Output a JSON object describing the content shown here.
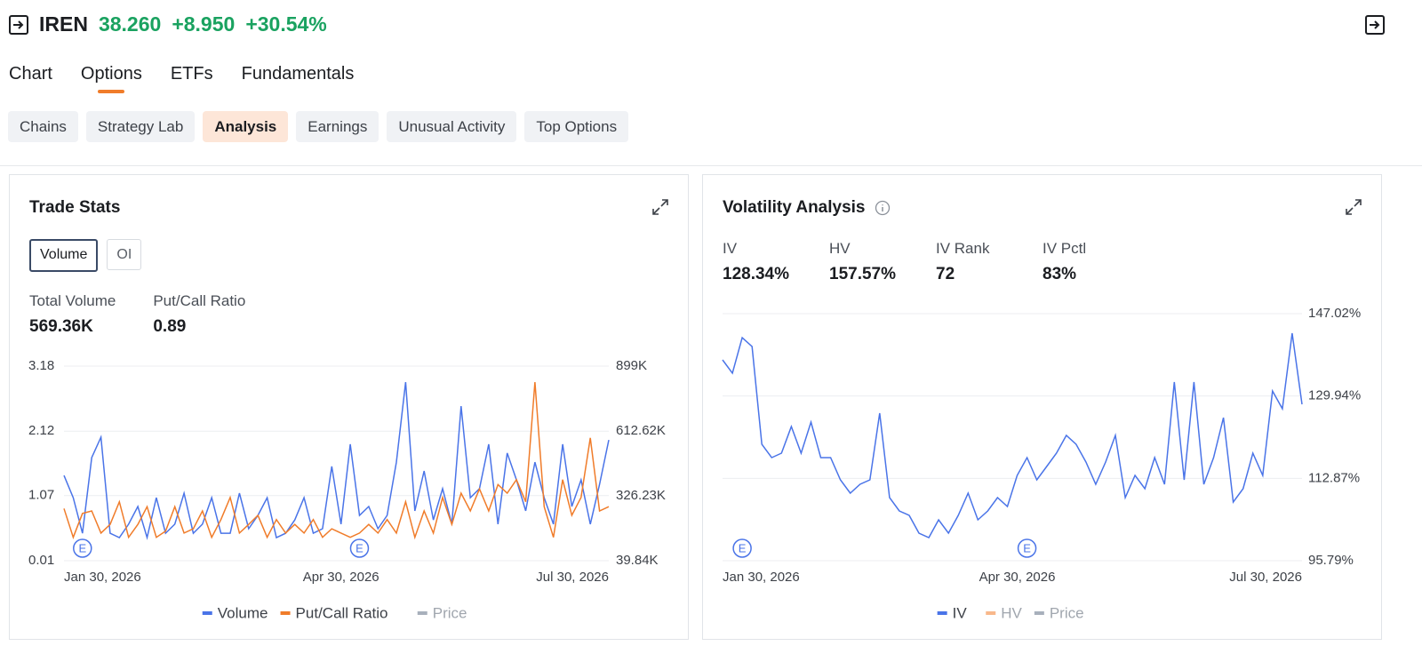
{
  "header": {
    "ticker": "IREN",
    "price": "38.260",
    "change": "+8.950",
    "change_pct": "+30.54%"
  },
  "tabs": [
    "Chart",
    "Options",
    "ETFs",
    "Fundamentals"
  ],
  "active_tab": "Options",
  "subtabs": [
    "Chains",
    "Strategy Lab",
    "Analysis",
    "Earnings",
    "Unusual Activity",
    "Top Options"
  ],
  "active_subtab": "Analysis",
  "trade_stats": {
    "title": "Trade Stats",
    "toggles": [
      "Volume",
      "OI"
    ],
    "active_toggle": "Volume",
    "stats": [
      {
        "label": "Total Volume",
        "value": "569.36K"
      },
      {
        "label": "Put/Call Ratio",
        "value": "0.89"
      }
    ],
    "chart_data": {
      "type": "line",
      "categories": [
        "Jan 30, 2026",
        null,
        null,
        null,
        null,
        null,
        null,
        null,
        null,
        null,
        null,
        null,
        null,
        null,
        null,
        null,
        null,
        null,
        null,
        null,
        null,
        null,
        null,
        null,
        null,
        null,
        null,
        null,
        null,
        null,
        "Apr 30, 2026",
        null,
        null,
        null,
        null,
        null,
        null,
        null,
        null,
        null,
        null,
        null,
        null,
        null,
        null,
        null,
        null,
        null,
        null,
        null,
        null,
        null,
        null,
        null,
        null,
        null,
        null,
        null,
        null,
        "Jul 30, 2026"
      ],
      "ylim": [
        0.01,
        3.18
      ],
      "yticks": [
        0.01,
        1.07,
        2.12,
        3.18
      ],
      "y2lim": [
        39840,
        899000
      ],
      "y2ticks": [
        {
          "value": 39840,
          "label": "39.84K"
        },
        {
          "value": 326230,
          "label": "326.23K"
        },
        {
          "value": 612620,
          "label": "612.62K"
        },
        {
          "value": 899000,
          "label": "899K"
        }
      ],
      "grid": true,
      "events": [
        {
          "at": 2,
          "label": "E"
        },
        {
          "at": 32,
          "label": "E"
        }
      ],
      "series": [
        {
          "name": "Volume",
          "color": "#4a74e8",
          "axis": "y2",
          "values": [
            416000,
            318000,
            161000,
            495000,
            585000,
            161000,
            142000,
            201000,
            279000,
            142000,
            318000,
            161000,
            201000,
            338000,
            161000,
            201000,
            318000,
            161000,
            161000,
            338000,
            181000,
            240000,
            318000,
            142000,
            161000,
            220000,
            318000,
            161000,
            181000,
            456000,
            201000,
            554000,
            240000,
            279000,
            181000,
            240000,
            475000,
            828000,
            260000,
            436000,
            220000,
            358000,
            201000,
            722000,
            318000,
            358000,
            554000,
            201000,
            515000,
            397000,
            260000,
            475000,
            318000,
            201000,
            554000,
            279000,
            397000,
            201000,
            377000,
            573000
          ]
        },
        {
          "name": "Put/Call Ratio",
          "color": "#f07c2a",
          "values": [
            0.86,
            0.39,
            0.78,
            0.82,
            0.46,
            0.6,
            0.97,
            0.39,
            0.6,
            0.89,
            0.39,
            0.49,
            0.89,
            0.46,
            0.53,
            0.82,
            0.39,
            0.68,
            1.04,
            0.46,
            0.6,
            0.75,
            0.39,
            0.68,
            0.46,
            0.6,
            0.46,
            0.68,
            0.39,
            0.53,
            0.46,
            0.39,
            0.46,
            0.6,
            0.46,
            0.68,
            0.46,
            0.97,
            0.39,
            0.82,
            0.46,
            1.04,
            0.6,
            1.11,
            0.82,
            1.18,
            0.82,
            1.25,
            1.11,
            1.33,
            0.97,
            2.92,
            0.89,
            0.39,
            1.33,
            0.75,
            1.04,
            2.01,
            0.82,
            0.89
          ]
        }
      ],
      "hidden_series": [
        {
          "name": "Price",
          "color": "#a8b0bc"
        }
      ]
    }
  },
  "volatility": {
    "title": "Volatility Analysis",
    "stats": [
      {
        "label": "IV",
        "value": "128.34%"
      },
      {
        "label": "HV",
        "value": "157.57%"
      },
      {
        "label": "IV Rank",
        "value": "72"
      },
      {
        "label": "IV Pctl",
        "value": "83%"
      }
    ],
    "chart_data": {
      "type": "line",
      "categories": [
        "Jan 30, 2026",
        null,
        null,
        null,
        null,
        null,
        null,
        null,
        null,
        null,
        null,
        null,
        null,
        null,
        null,
        null,
        null,
        null,
        null,
        null,
        null,
        null,
        null,
        null,
        null,
        null,
        null,
        null,
        null,
        null,
        "Apr 30, 2026",
        null,
        null,
        null,
        null,
        null,
        null,
        null,
        null,
        null,
        null,
        null,
        null,
        null,
        null,
        null,
        null,
        null,
        null,
        null,
        null,
        null,
        null,
        null,
        null,
        null,
        null,
        null,
        null,
        "Jul 30, 2026"
      ],
      "ylim": [
        95.79,
        147.02
      ],
      "yticks": [
        {
          "value": 95.79,
          "label": "95.79%"
        },
        {
          "value": 112.87,
          "label": "112.87%"
        },
        {
          "value": 129.94,
          "label": "129.94%"
        },
        {
          "value": 147.02,
          "label": "147.02%"
        }
      ],
      "grid": true,
      "events": [
        {
          "at": 2,
          "label": "E"
        },
        {
          "at": 31,
          "label": "E"
        }
      ],
      "series": [
        {
          "name": "IV",
          "color": "#4a74e8",
          "values": [
            137.44,
            134.67,
            142.04,
            140.2,
            119.93,
            117.17,
            118.09,
            123.62,
            118.09,
            124.54,
            117.17,
            117.17,
            112.56,
            109.8,
            111.64,
            112.56,
            126.38,
            108.87,
            106.11,
            105.19,
            101.5,
            100.58,
            104.27,
            101.5,
            105.19,
            109.8,
            104.27,
            106.11,
            108.87,
            107.03,
            113.48,
            117.17,
            112.56,
            115.32,
            118.09,
            121.77,
            119.93,
            116.25,
            111.64,
            116.25,
            121.77,
            108.87,
            113.48,
            110.72,
            117.17,
            111.64,
            132.83,
            112.56,
            132.83,
            111.64,
            117.17,
            125.46,
            107.95,
            110.72,
            118.09,
            113.48,
            130.99,
            127.3,
            142.97,
            128.22
          ]
        }
      ],
      "hidden_series": [
        {
          "name": "HV",
          "color": "#f8b88b"
        },
        {
          "name": "Price",
          "color": "#a8b0bc"
        }
      ]
    }
  }
}
